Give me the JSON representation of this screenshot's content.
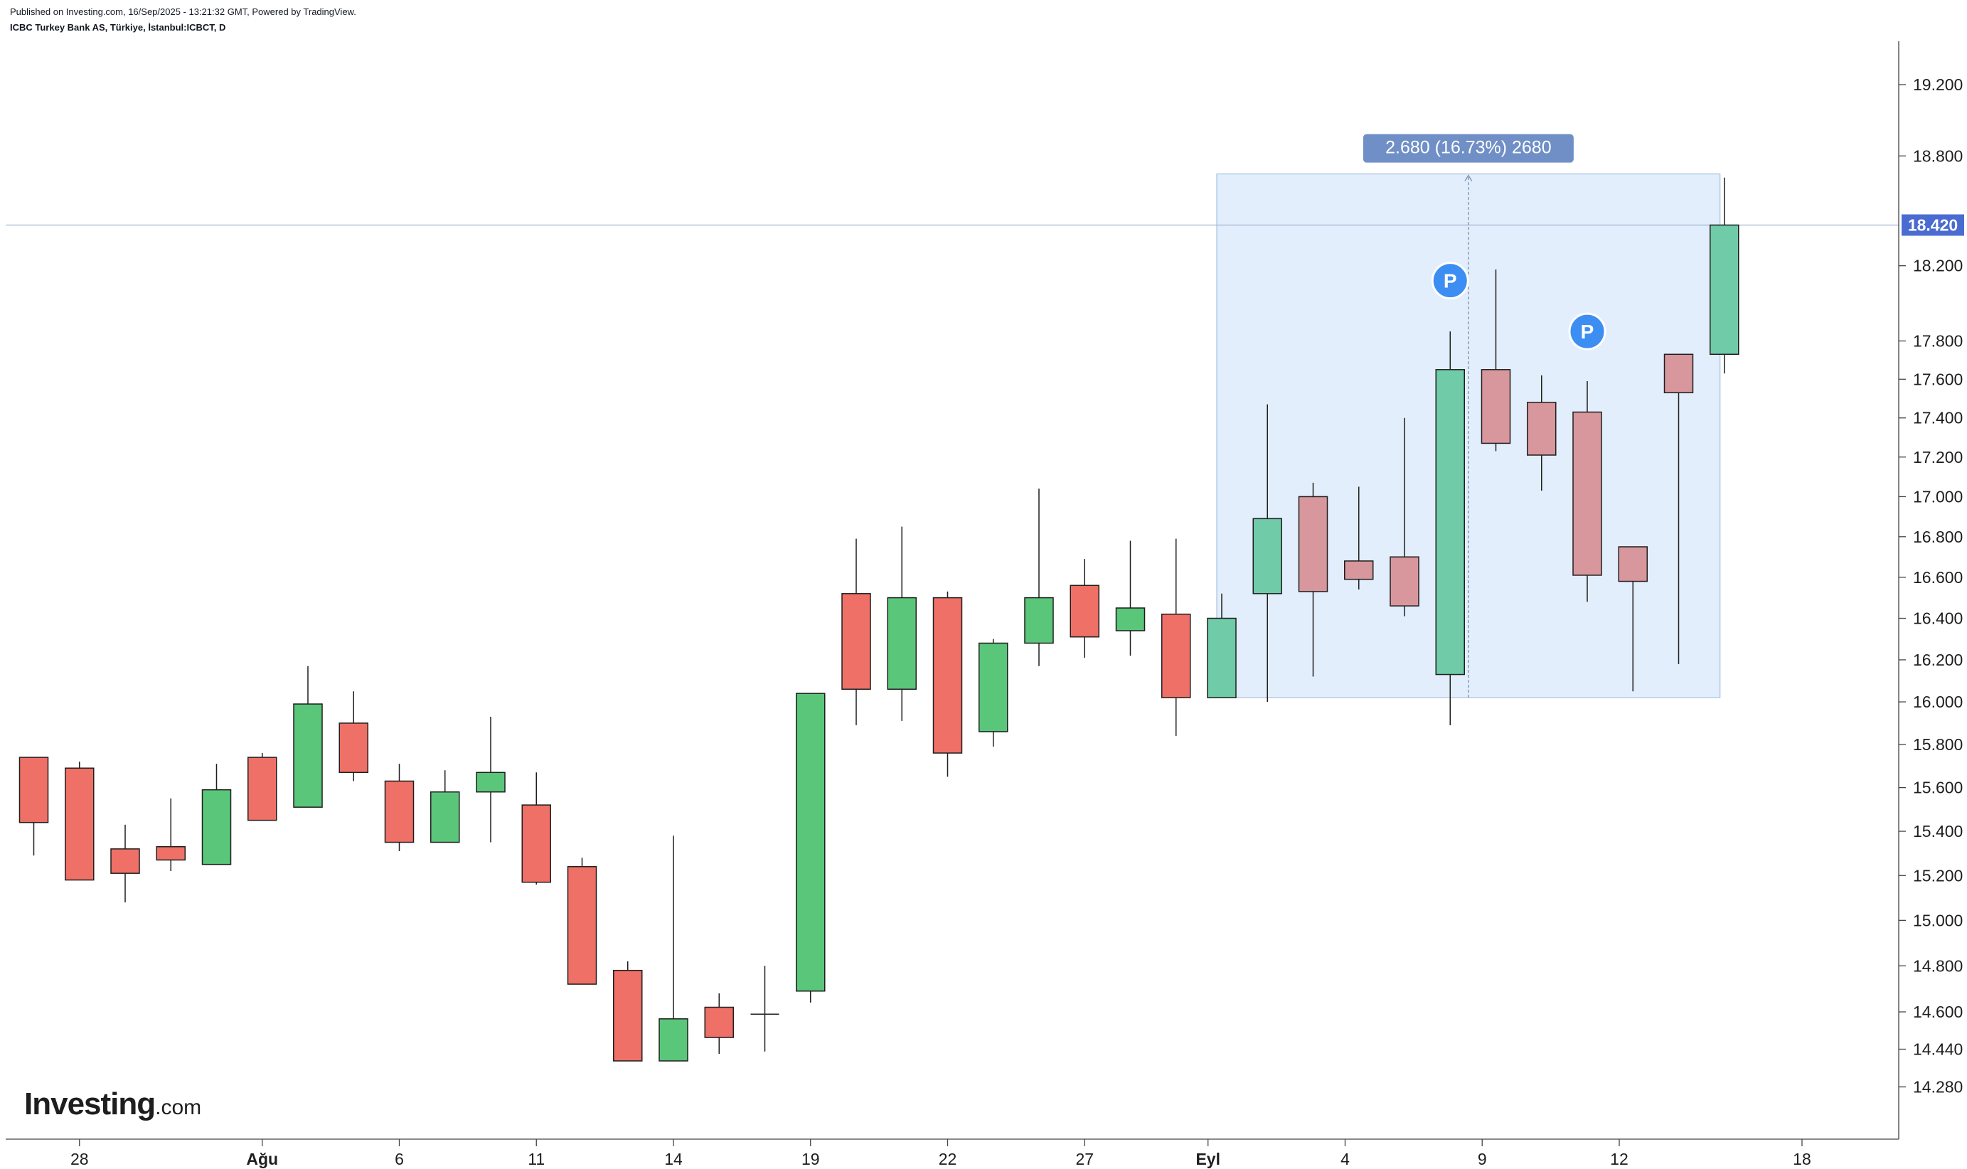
{
  "header": {
    "published": "Published on Investing.com, 16/Sep/2025 - 13:21:32 GMT, Powered by TradingView.",
    "symbol": "ICBC Turkey Bank AS, Türkiye, İstanbul:ICBCT, D"
  },
  "logo": {
    "main": "Investing",
    "suffix": ".com"
  },
  "chart_data": {
    "type": "candlestick",
    "y_scale": "log",
    "ylim": [
      14.18,
      19.35
    ],
    "y_ticks": [
      "14.280",
      "14.440",
      "14.600",
      "14.800",
      "15.000",
      "15.200",
      "15.400",
      "15.600",
      "15.800",
      "16.000",
      "16.200",
      "16.400",
      "16.600",
      "16.800",
      "17.000",
      "17.200",
      "17.400",
      "17.600",
      "17.800",
      "18.200",
      "18.800",
      "19.200"
    ],
    "x_labels": [
      {
        "label": "28",
        "index": 1,
        "bold": false
      },
      {
        "label": "Ağu",
        "index": 5,
        "bold": true
      },
      {
        "label": "6",
        "index": 8,
        "bold": false
      },
      {
        "label": "11",
        "index": 11,
        "bold": false
      },
      {
        "label": "14",
        "index": 14,
        "bold": false
      },
      {
        "label": "19",
        "index": 17,
        "bold": false
      },
      {
        "label": "22",
        "index": 20,
        "bold": false
      },
      {
        "label": "27",
        "index": 23,
        "bold": false
      },
      {
        "label": "Eyl",
        "index": 25.7,
        "bold": true
      },
      {
        "label": "4",
        "index": 28.7,
        "bold": false
      },
      {
        "label": "9",
        "index": 31.7,
        "bold": false
      },
      {
        "label": "12",
        "index": 34.7,
        "bold": false
      },
      {
        "label": "18",
        "index": 38.7,
        "bold": false
      }
    ],
    "candles": [
      {
        "o": 15.74,
        "h": 15.74,
        "l": 15.29,
        "c": 15.44
      },
      {
        "o": 15.69,
        "h": 15.72,
        "l": 15.18,
        "c": 15.18
      },
      {
        "o": 15.32,
        "h": 15.43,
        "l": 15.08,
        "c": 15.21
      },
      {
        "o": 15.33,
        "h": 15.55,
        "l": 15.22,
        "c": 15.27
      },
      {
        "o": 15.25,
        "h": 15.71,
        "l": 15.25,
        "c": 15.59
      },
      {
        "o": 15.74,
        "h": 15.76,
        "l": 15.45,
        "c": 15.45
      },
      {
        "o": 15.51,
        "h": 16.17,
        "l": 15.51,
        "c": 15.99
      },
      {
        "o": 15.9,
        "h": 16.05,
        "l": 15.63,
        "c": 15.67
      },
      {
        "o": 15.63,
        "h": 15.71,
        "l": 15.31,
        "c": 15.35
      },
      {
        "o": 15.35,
        "h": 15.68,
        "l": 15.35,
        "c": 15.58
      },
      {
        "o": 15.58,
        "h": 15.93,
        "l": 15.35,
        "c": 15.67
      },
      {
        "o": 15.52,
        "h": 15.67,
        "l": 15.16,
        "c": 15.17
      },
      {
        "o": 15.24,
        "h": 15.28,
        "l": 14.72,
        "c": 14.72
      },
      {
        "o": 14.78,
        "h": 14.82,
        "l": 14.39,
        "c": 14.39
      },
      {
        "o": 14.39,
        "h": 15.38,
        "l": 14.39,
        "c": 14.57
      },
      {
        "o": 14.62,
        "h": 14.68,
        "l": 14.42,
        "c": 14.49
      },
      {
        "o": 14.59,
        "h": 14.8,
        "l": 14.43,
        "c": 14.59
      },
      {
        "o": 14.69,
        "h": 16.04,
        "l": 14.64,
        "c": 16.04
      },
      {
        "o": 16.52,
        "h": 16.79,
        "l": 15.89,
        "c": 16.06
      },
      {
        "o": 16.06,
        "h": 16.85,
        "l": 15.91,
        "c": 16.5
      },
      {
        "o": 16.5,
        "h": 16.53,
        "l": 15.65,
        "c": 15.76
      },
      {
        "o": 15.86,
        "h": 16.3,
        "l": 15.79,
        "c": 16.28
      },
      {
        "o": 16.28,
        "h": 17.04,
        "l": 16.17,
        "c": 16.5
      },
      {
        "o": 16.56,
        "h": 16.69,
        "l": 16.21,
        "c": 16.31
      },
      {
        "o": 16.34,
        "h": 16.78,
        "l": 16.22,
        "c": 16.45
      },
      {
        "o": 16.42,
        "h": 16.79,
        "l": 15.84,
        "c": 16.02
      },
      {
        "o": 16.02,
        "h": 16.52,
        "l": 16.02,
        "c": 16.4
      },
      {
        "o": 16.52,
        "h": 17.47,
        "l": 16.0,
        "c": 16.89
      },
      {
        "o": 17.0,
        "h": 17.07,
        "l": 16.12,
        "c": 16.53
      },
      {
        "o": 16.68,
        "h": 17.05,
        "l": 16.54,
        "c": 16.59
      },
      {
        "o": 16.7,
        "h": 17.4,
        "l": 16.41,
        "c": 16.46
      },
      {
        "o": 16.13,
        "h": 17.85,
        "l": 15.89,
        "c": 17.65
      },
      {
        "o": 17.65,
        "h": 18.18,
        "l": 17.23,
        "c": 17.27
      },
      {
        "o": 17.48,
        "h": 17.62,
        "l": 17.03,
        "c": 17.21
      },
      {
        "o": 17.43,
        "h": 17.59,
        "l": 16.48,
        "c": 16.61
      },
      {
        "o": 16.75,
        "h": 16.75,
        "l": 16.05,
        "c": 16.58
      },
      {
        "o": 17.73,
        "h": 17.73,
        "l": 16.18,
        "c": 17.53
      },
      {
        "o": 17.73,
        "h": 18.68,
        "l": 17.63,
        "c": 18.42
      }
    ],
    "highlight_indices": [
      26,
      27,
      28,
      29,
      30,
      31,
      32,
      33,
      34,
      35,
      36,
      37
    ],
    "current_price": 18.42,
    "current_price_label": "18.420",
    "measure": {
      "label": "2.680 (16.73%) 2680",
      "from_index": 26,
      "to_index": 37,
      "low": 16.02,
      "high": 18.7
    },
    "markers": [
      {
        "label": "P",
        "index": 31,
        "price": 18.12
      },
      {
        "label": "P",
        "index": 34,
        "price": 17.85
      }
    ],
    "colors": {
      "up": "#5ac67a",
      "down": "#ef7066",
      "up_faded": "#6fcba8",
      "down_faded": "#d8979c",
      "outline": "#1e1e1e",
      "measure_fill": "#e2eefc",
      "measure_label_bg": "#6f8fc6",
      "marker": "#3d8ef3",
      "price_line": "#9fb4cf",
      "price_label_bg": "#4a6bd1"
    }
  }
}
